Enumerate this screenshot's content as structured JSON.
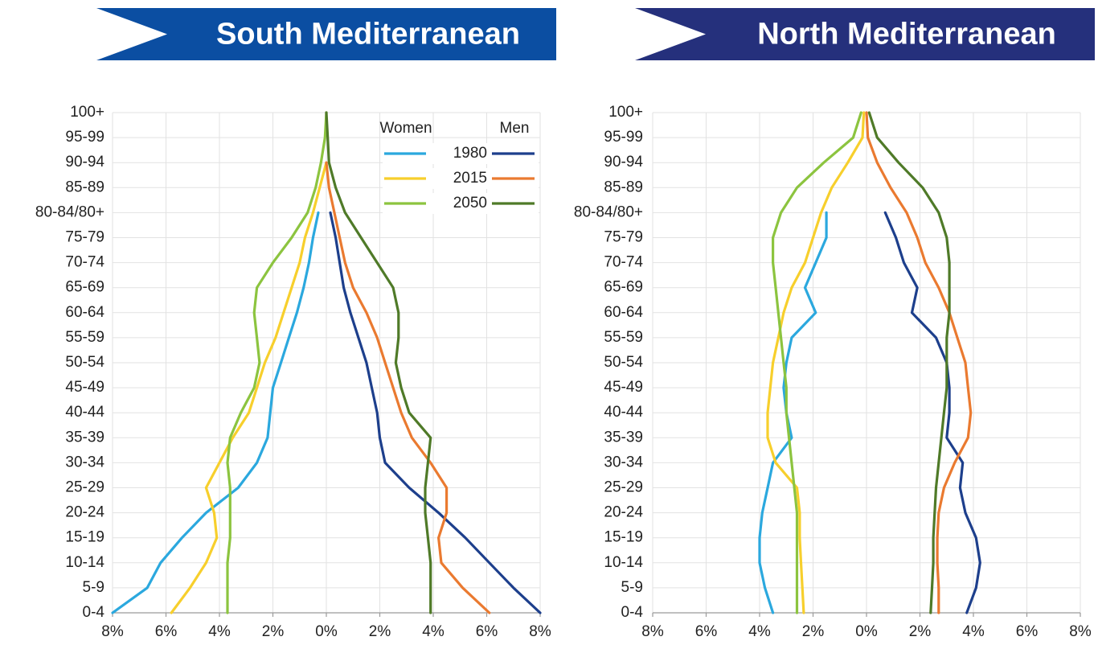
{
  "chart_data": [
    {
      "type": "line-pyramid",
      "title": "South Mediterranean",
      "banner_color": "#0b4ea2",
      "categories": [
        "0-4",
        "5-9",
        "10-14",
        "15-19",
        "20-24",
        "25-29",
        "30-34",
        "35-39",
        "40-44",
        "45-49",
        "50-54",
        "55-59",
        "60-64",
        "65-69",
        "70-74",
        "75-79",
        "80-84/80+",
        "85-89",
        "90-94",
        "95-99",
        "100+"
      ],
      "xlim": [
        -8,
        8
      ],
      "xticks": [
        {
          "value": -8,
          "label": "8%"
        },
        {
          "value": -6,
          "label": "6%"
        },
        {
          "value": -4,
          "label": "4%"
        },
        {
          "value": -2,
          "label": "2%"
        },
        {
          "value": 0,
          "label": "0%"
        },
        {
          "value": 2,
          "label": "2%"
        },
        {
          "value": 4,
          "label": "4%"
        },
        {
          "value": 6,
          "label": "6%"
        },
        {
          "value": 8,
          "label": "8%"
        }
      ],
      "grid": true,
      "legend_headers": [
        "Women",
        "Men"
      ],
      "series": [
        {
          "name": "1980",
          "women": {
            "color": "#2ba8de",
            "values": [
              -8.0,
              -6.7,
              -6.2,
              -5.4,
              -4.5,
              -3.3,
              -2.6,
              -2.2,
              -2.1,
              -2.0,
              -1.7,
              -1.4,
              -1.1,
              -0.85,
              -0.65,
              -0.5,
              -0.3,
              null,
              null,
              null,
              null
            ]
          },
          "men": {
            "color": "#1d3f8c",
            "values": [
              8.0,
              7.0,
              6.1,
              5.2,
              4.2,
              3.1,
              2.2,
              2.0,
              1.9,
              1.7,
              1.5,
              1.2,
              0.9,
              0.65,
              0.5,
              0.35,
              0.15,
              null,
              null,
              null,
              null
            ]
          }
        },
        {
          "name": "2015",
          "women": {
            "color": "#f7cf2c",
            "values": [
              -5.8,
              -5.1,
              -4.5,
              -4.1,
              -4.2,
              -4.5,
              -4.0,
              -3.5,
              -2.9,
              -2.6,
              -2.3,
              -1.9,
              -1.6,
              -1.3,
              -1.0,
              -0.8,
              -0.5,
              -0.25,
              0,
              null,
              null
            ]
          },
          "men": {
            "color": "#ea7a30",
            "values": [
              6.1,
              5.1,
              4.3,
              4.2,
              4.5,
              4.5,
              3.9,
              3.2,
              2.8,
              2.5,
              2.2,
              1.9,
              1.5,
              1.0,
              0.7,
              0.5,
              0.3,
              0.1,
              0,
              null,
              null
            ]
          }
        },
        {
          "name": "2050",
          "women": {
            "color": "#8cc43f",
            "values": [
              -3.7,
              -3.7,
              -3.7,
              -3.6,
              -3.6,
              -3.6,
              -3.7,
              -3.6,
              -3.2,
              -2.7,
              -2.5,
              -2.6,
              -2.7,
              -2.6,
              -2.0,
              -1.3,
              -0.7,
              -0.4,
              -0.2,
              -0.05,
              0
            ]
          },
          "men": {
            "color": "#4f7a28",
            "values": [
              3.9,
              3.9,
              3.9,
              3.8,
              3.7,
              3.7,
              3.8,
              3.9,
              3.1,
              2.8,
              2.6,
              2.7,
              2.7,
              2.5,
              1.9,
              1.3,
              0.7,
              0.35,
              0.1,
              0.05,
              0
            ]
          }
        }
      ]
    },
    {
      "type": "line-pyramid",
      "title": "North Mediterranean",
      "banner_color": "#25307c",
      "categories": [
        "0-4",
        "5-9",
        "10-14",
        "15-19",
        "20-24",
        "25-29",
        "30-34",
        "35-39",
        "40-44",
        "45-49",
        "50-54",
        "55-59",
        "60-64",
        "65-69",
        "70-74",
        "75-79",
        "80-84/80+",
        "85-89",
        "90-94",
        "95-99",
        "100+"
      ],
      "xlim": [
        -8,
        8
      ],
      "xticks": [
        {
          "value": -8,
          "label": "8%"
        },
        {
          "value": -6,
          "label": "6%"
        },
        {
          "value": -4,
          "label": "4%"
        },
        {
          "value": -2,
          "label": "2%"
        },
        {
          "value": 0,
          "label": "0%"
        },
        {
          "value": 2,
          "label": "2%"
        },
        {
          "value": 4,
          "label": "4%"
        },
        {
          "value": 6,
          "label": "6%"
        },
        {
          "value": 8,
          "label": "8%"
        }
      ],
      "grid": true,
      "series": [
        {
          "women": {
            "color": "#2ba8de",
            "values": [
              -3.5,
              -3.8,
              -4.0,
              -4.0,
              -3.9,
              -3.7,
              -3.5,
              -2.8,
              -3.0,
              -3.1,
              -3.0,
              -2.8,
              -1.9,
              -2.3,
              -1.9,
              -1.5,
              -1.5,
              null,
              null,
              null,
              null
            ]
          },
          "men": {
            "color": "#1d3f8c",
            "values": [
              3.75,
              4.1,
              4.25,
              4.1,
              3.7,
              3.5,
              3.6,
              3.0,
              3.1,
              3.1,
              3.0,
              2.6,
              1.7,
              1.9,
              1.4,
              1.1,
              0.7,
              null,
              null,
              null,
              null
            ]
          }
        },
        {
          "women": {
            "color": "#f7cf2c",
            "values": [
              -2.35,
              -2.4,
              -2.45,
              -2.5,
              -2.5,
              -2.6,
              -3.4,
              -3.7,
              -3.7,
              -3.6,
              -3.5,
              -3.3,
              -3.1,
              -2.8,
              -2.3,
              -2.0,
              -1.7,
              -1.3,
              -0.7,
              -0.15,
              -0.1
            ]
          },
          "men": {
            "color": "#ea7a30",
            "values": [
              2.7,
              2.7,
              2.65,
              2.65,
              2.7,
              2.9,
              3.3,
              3.8,
              3.9,
              3.8,
              3.7,
              3.4,
              3.1,
              2.7,
              2.2,
              1.9,
              1.5,
              0.9,
              0.4,
              0.05,
              0
            ]
          }
        },
        {
          "women": {
            "color": "#8cc43f",
            "values": [
              -2.6,
              -2.6,
              -2.6,
              -2.6,
              -2.6,
              -2.7,
              -2.8,
              -2.9,
              -3.0,
              -3.0,
              -3.1,
              -3.2,
              -3.3,
              -3.4,
              -3.5,
              -3.5,
              -3.2,
              -2.6,
              -1.6,
              -0.5,
              -0.2
            ]
          },
          "men": {
            "color": "#4f7a28",
            "values": [
              2.4,
              2.45,
              2.5,
              2.5,
              2.55,
              2.6,
              2.7,
              2.8,
              2.9,
              3.0,
              3.0,
              3.0,
              3.1,
              3.1,
              3.1,
              3.0,
              2.7,
              2.1,
              1.2,
              0.4,
              0.1
            ]
          }
        }
      ]
    }
  ]
}
